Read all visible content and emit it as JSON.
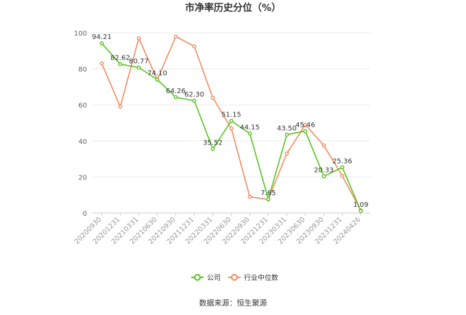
{
  "chart_data": {
    "type": "line",
    "title": "市净率历史分位（%）",
    "xlabel": "",
    "ylabel": "",
    "ylim": [
      0,
      100
    ],
    "yticks": [
      0,
      20,
      40,
      60,
      80,
      100
    ],
    "grid": true,
    "legend_position": "bottom",
    "categories": [
      "20200930",
      "20201231",
      "20210331",
      "20210630",
      "20210930",
      "20211231",
      "20220331",
      "20220630",
      "20220930",
      "20221231",
      "20230331",
      "20230630",
      "20230930",
      "20231231",
      "20240426"
    ],
    "series": [
      {
        "name": "公司",
        "color": "#52c41a",
        "values": [
          94.21,
          82.62,
          80.77,
          74.1,
          64.26,
          62.3,
          35.52,
          51.15,
          44.15,
          7.65,
          43.5,
          45.46,
          20.33,
          25.36,
          1.09
        ],
        "labels": [
          "94.21",
          "82.62",
          "80.77",
          "74.10",
          "64.26",
          "62.30",
          "35.52",
          "51.15",
          "44.15",
          "7.65",
          "43.50",
          "45.46",
          "20.33",
          "25.36",
          "1.09"
        ]
      },
      {
        "name": "行业中位数",
        "color": "#f4875a",
        "values": [
          83,
          59,
          97,
          74,
          98,
          92.5,
          64,
          47,
          9,
          7.5,
          33,
          49,
          37.5,
          20.5,
          1.5
        ]
      }
    ]
  },
  "footer": {
    "source": "数据来源：恒生聚源"
  }
}
